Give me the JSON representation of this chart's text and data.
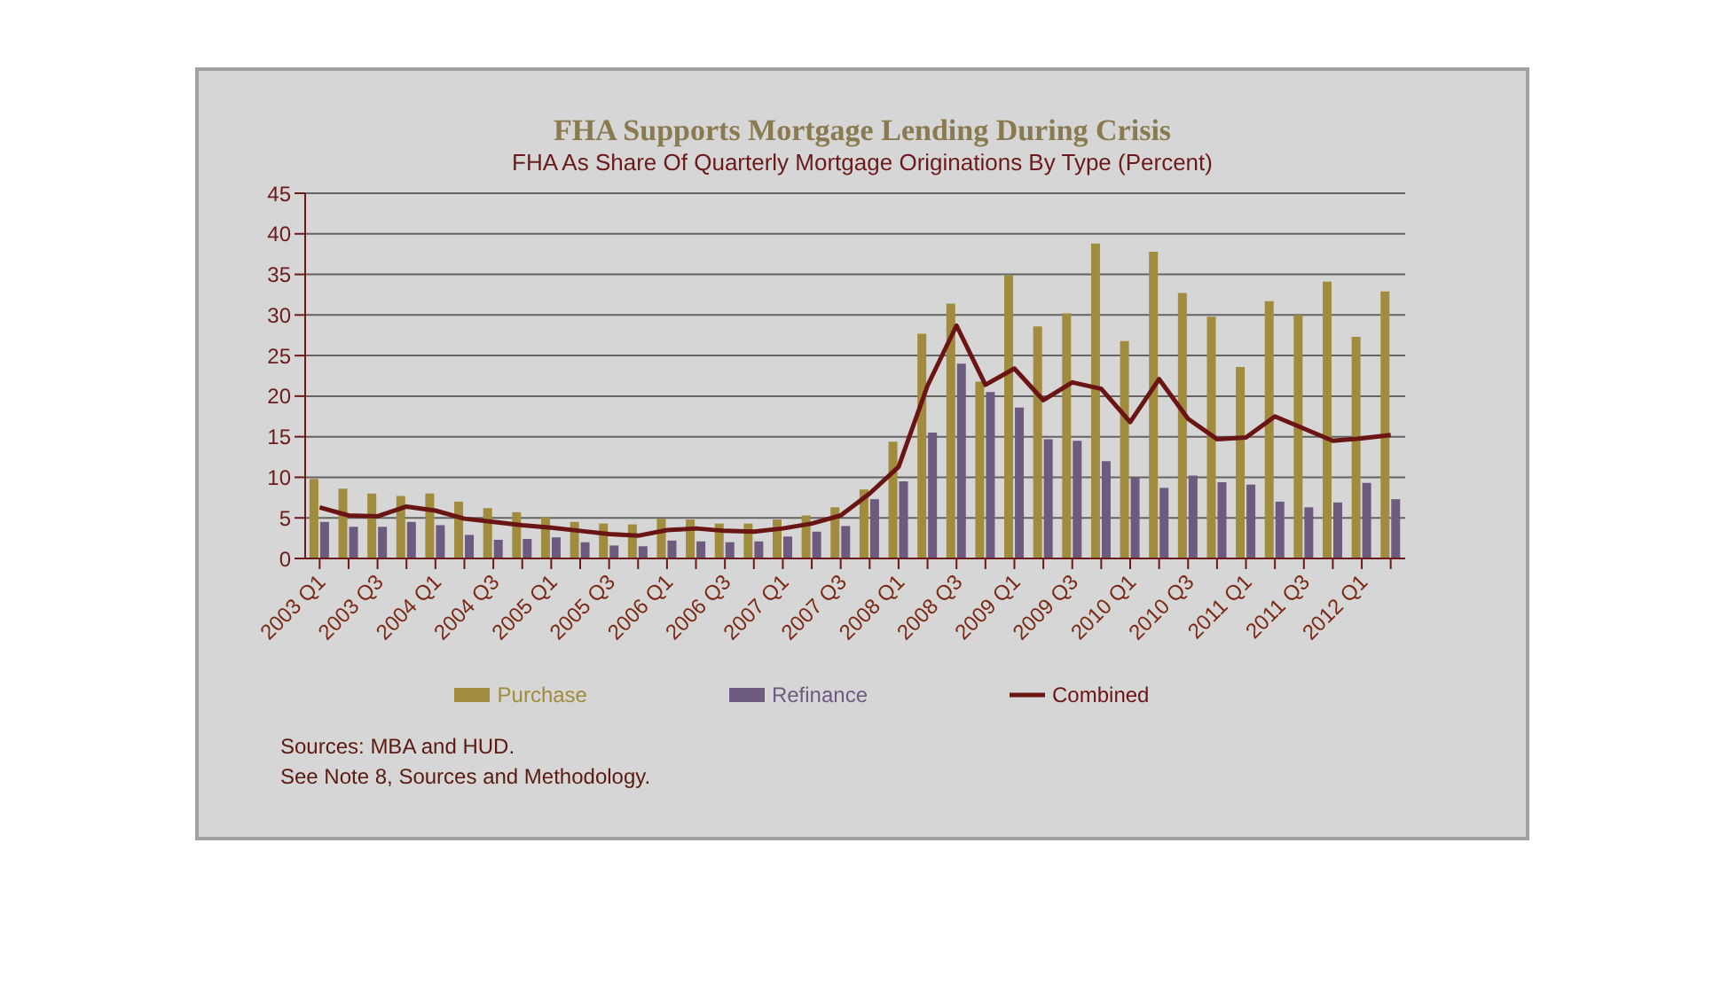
{
  "chart_data": {
    "type": "bar",
    "title": "FHA Supports Mortgage Lending During Crisis",
    "subtitle": "FHA As Share Of Quarterly Mortgage Originations By Type (Percent)",
    "categories": [
      "2003 Q1",
      null,
      "2003 Q3",
      null,
      "2004 Q1",
      null,
      "2004 Q3",
      null,
      "2005 Q1",
      null,
      "2005 Q3",
      null,
      "2006 Q1",
      null,
      "2006 Q3",
      null,
      "2007 Q1",
      null,
      "2007 Q3",
      null,
      "2008 Q1",
      null,
      "2008 Q3",
      null,
      "2009 Q1",
      null,
      "2009 Q3",
      null,
      "2010 Q1",
      null,
      "2010 Q3",
      null,
      "2011 Q1",
      null,
      "2011 Q3",
      null,
      "2012 Q1",
      null
    ],
    "series": [
      {
        "name": "Purchase",
        "color": "#a08c3c",
        "values": [
          9.8,
          8.6,
          8.0,
          7.7,
          8.0,
          7.0,
          6.2,
          5.7,
          5.1,
          4.5,
          4.3,
          4.2,
          4.9,
          4.8,
          4.3,
          4.3,
          4.8,
          5.3,
          6.3,
          8.5,
          14.4,
          27.7,
          31.4,
          21.8,
          34.9,
          28.6,
          30.2,
          38.8,
          26.8,
          37.8,
          32.7,
          29.8,
          23.6,
          31.7,
          30.0,
          34.1,
          27.3,
          32.9
        ]
      },
      {
        "name": "Refinance",
        "color": "#6e5a7e",
        "values": [
          4.5,
          3.9,
          3.9,
          4.5,
          4.1,
          2.9,
          2.3,
          2.4,
          2.6,
          2.0,
          1.6,
          1.5,
          2.2,
          2.1,
          2.0,
          2.1,
          2.7,
          3.3,
          4.0,
          7.3,
          9.5,
          15.5,
          24.0,
          20.5,
          18.6,
          14.7,
          14.5,
          12.0,
          10.0,
          8.7,
          10.2,
          9.4,
          9.1,
          7.0,
          6.3,
          6.9,
          9.3,
          7.3
        ]
      },
      {
        "name": "Combined",
        "type": "line",
        "color": "#6b1414",
        "values": [
          6.3,
          5.3,
          5.2,
          6.4,
          5.9,
          4.9,
          4.5,
          4.1,
          3.8,
          3.4,
          3.0,
          2.8,
          3.5,
          3.7,
          3.4,
          3.3,
          3.7,
          4.3,
          5.3,
          8.0,
          11.3,
          21.3,
          28.7,
          21.4,
          23.4,
          19.5,
          21.7,
          20.9,
          16.8,
          22.1,
          17.2,
          14.7,
          14.9,
          17.5,
          16.0,
          14.5,
          14.8,
          15.2
        ]
      }
    ],
    "ylim": [
      0,
      45
    ],
    "yticks": [
      0,
      5,
      10,
      15,
      20,
      25,
      30,
      35,
      40,
      45
    ],
    "grid": "y",
    "legend": "bottom",
    "marker": "none",
    "line_style": "solid",
    "annotations": [
      "Sources:  MBA and HUD.",
      "See Note 8, Sources and Methodology."
    ]
  }
}
